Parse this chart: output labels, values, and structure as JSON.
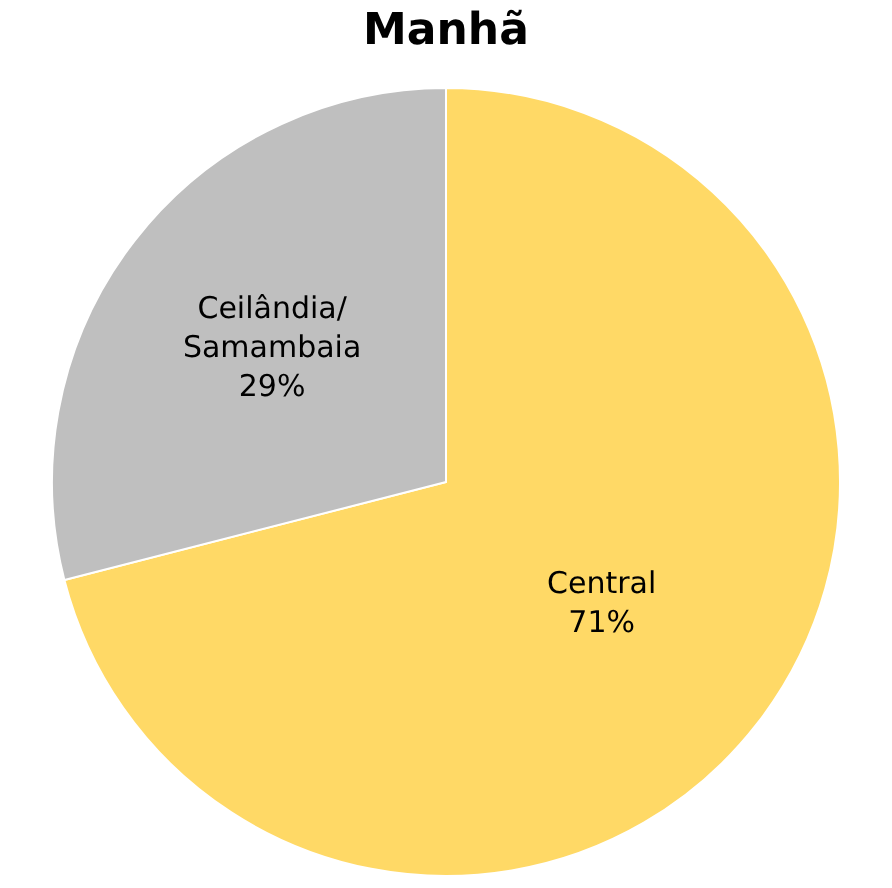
{
  "chart_data": {
    "type": "pie",
    "title": "Manhã",
    "categories": [
      "Central",
      "Ceilândia/ Samambaia"
    ],
    "values": [
      71,
      29
    ],
    "value_labels": [
      "71%",
      "29%"
    ],
    "colors": [
      "#ffd966",
      "#bfbfbf"
    ],
    "legend": false
  }
}
